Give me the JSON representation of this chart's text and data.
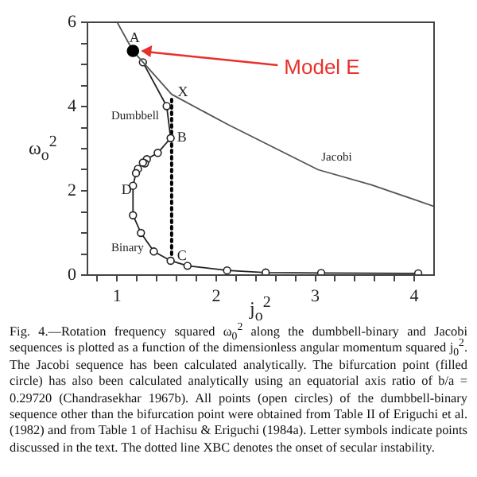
{
  "chart_data": {
    "type": "line",
    "xlabel": "j$_{o}$$^{2}$",
    "ylabel": "ω$_{o}$$^{2}$",
    "xlim": [
      0.7,
      4.2
    ],
    "ylim": [
      0,
      6
    ],
    "xticks": [
      {
        "value": 0.8,
        "label": null
      },
      1,
      {
        "value": 1.2,
        "label": null
      },
      {
        "value": 1.4,
        "label": null
      },
      {
        "value": 1.6,
        "label": null
      },
      {
        "value": 1.8,
        "label": null
      },
      2,
      {
        "value": 2.2,
        "label": null
      },
      {
        "value": 2.4,
        "label": null
      },
      {
        "value": 2.6,
        "label": null
      },
      {
        "value": 2.8,
        "label": null
      },
      3,
      {
        "value": 3.2,
        "label": null
      },
      {
        "value": 3.4,
        "label": null
      },
      {
        "value": 3.6,
        "label": null
      },
      {
        "value": 3.8,
        "label": null
      },
      4
    ],
    "yticks": [
      0,
      {
        "value": 0.5,
        "label": null
      },
      {
        "value": 1,
        "label": null
      },
      {
        "value": 1.5,
        "label": null
      },
      2,
      {
        "value": 2.5,
        "label": null
      },
      {
        "value": 3,
        "label": null
      },
      {
        "value": 3.5,
        "label": null
      },
      4,
      {
        "value": 4.5,
        "label": null
      },
      {
        "value": 5,
        "label": null
      },
      {
        "value": 5.5,
        "label": null
      },
      6
    ],
    "grid": false,
    "legend": false,
    "series": [
      {
        "name": "Jacobi",
        "color": "#555555",
        "marker": "none",
        "x": [
          1.0,
          1.16,
          1.55,
          2.12,
          3.03,
          3.57,
          4.2
        ],
        "values": [
          6.0,
          5.32,
          4.29,
          3.57,
          2.5,
          2.14,
          1.63
        ]
      },
      {
        "color": "#222222",
        "marker": "circle",
        "x": [
          1.26,
          1.5,
          1.54,
          1.41,
          1.3,
          1.28,
          1.26,
          1.21,
          1.19,
          1.16,
          1.16,
          1.24,
          1.37,
          1.54,
          1.71,
          2.11,
          2.5,
          3.06,
          4.04
        ],
        "values": [
          5.05,
          4.01,
          3.25,
          2.9,
          2.75,
          2.65,
          2.67,
          2.52,
          2.42,
          2.12,
          1.42,
          1.0,
          0.56,
          0.34,
          0.22,
          0.11,
          0.06,
          0.05,
          0.04
        ]
      },
      {
        "type": "line",
        "color": "#000000",
        "marker": "none",
        "line_style": "dotted",
        "x": [
          1.55,
          1.55
        ],
        "values": [
          0.34,
          4.25
        ]
      },
      {
        "type": "scatter",
        "color": "#000000",
        "marker": "circle",
        "x": [
          1.16
        ],
        "values": [
          5.32
        ]
      }
    ],
    "annotations": [
      {
        "text": "A",
        "x": 1.16,
        "y": 5.32
      },
      {
        "text": "X",
        "x": 1.55,
        "y": 4.25
      },
      {
        "text": "B",
        "x": 1.54,
        "y": 3.25
      },
      {
        "text": "C",
        "x": 1.54,
        "y": 0.34
      },
      {
        "text": "D",
        "x": 1.16,
        "y": 2.12
      },
      "Dumbbell",
      "Binary",
      {
        "text": "Model E",
        "x": 1.16,
        "y": 5.32
      },
      "Fig. 4.—Rotation frequency squared ω$_{0}$$^{2}$ along the dumbbell-binary and Jacobi sequences is plotted as a function of the dimensionless angular momentum squared j$_{0}$$^{2}$. The Jacobi sequence has been calculated analytically. The bifurcation point (filled circle) has also been calculated analytically using an equatorial axis ratio of b/a = 0.29720 (Chandrasekhar 1967b). All points (open circles) of the dumbbell-binary sequence other than the bifurcation point were obtained from Table II of Eriguchi et al. (1982) and from Table 1 of Hachisu & Eriguchi (1984a). Letter symbols indicate points discussed in the text. The dotted line XBC denotes the onset of secular instability."
    ]
  }
}
